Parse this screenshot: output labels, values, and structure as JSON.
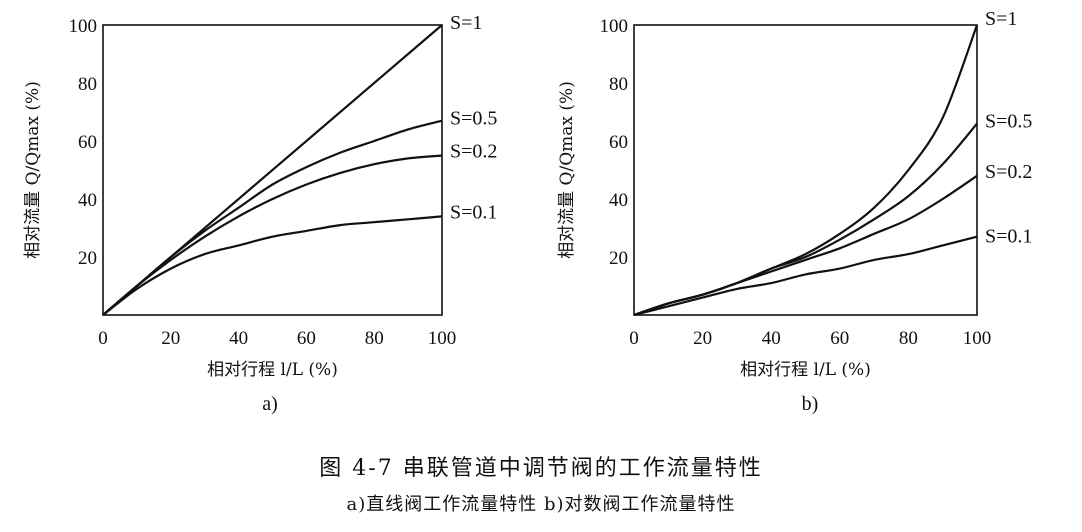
{
  "chart_data": [
    {
      "type": "line",
      "panel_label": "a)",
      "x": [
        0,
        10,
        20,
        30,
        40,
        50,
        60,
        70,
        80,
        90,
        100
      ],
      "xlabel": "相对行程 l/L (%)",
      "ylabel": "相对流量 Q/Qmax (%)",
      "xlim": [
        0,
        100
      ],
      "ylim": [
        0,
        100
      ],
      "xticks": [
        "0",
        "20",
        "40",
        "60",
        "80",
        "100"
      ],
      "yticks": [
        "20",
        "40",
        "60",
        "80",
        "100"
      ],
      "grid": false,
      "series": [
        {
          "name": "S=1",
          "values": [
            0,
            10,
            20,
            30,
            40,
            50,
            60,
            70,
            80,
            90,
            100
          ]
        },
        {
          "name": "S=0.5",
          "values": [
            0,
            10,
            20,
            29,
            37,
            45,
            51,
            56,
            60,
            64,
            67
          ]
        },
        {
          "name": "S=0.2",
          "values": [
            0,
            10,
            19,
            27,
            34,
            40,
            45,
            49,
            52,
            54,
            55
          ]
        },
        {
          "name": "S=0.1",
          "values": [
            0,
            9,
            16,
            21,
            24,
            27,
            29,
            31,
            32,
            33,
            34
          ]
        }
      ]
    },
    {
      "type": "line",
      "panel_label": "b)",
      "x": [
        0,
        10,
        20,
        30,
        40,
        50,
        60,
        70,
        80,
        90,
        100
      ],
      "xlabel": "相对行程 l/L (%)",
      "ylabel": "相对流量 Q/Qmax (%)",
      "xlim": [
        0,
        100
      ],
      "ylim": [
        0,
        100
      ],
      "xticks": [
        "0",
        "20",
        "40",
        "60",
        "80",
        "100"
      ],
      "yticks": [
        "20",
        "40",
        "60",
        "80",
        "100"
      ],
      "grid": false,
      "series": [
        {
          "name": "S=1",
          "values": [
            0,
            4,
            7,
            11,
            16,
            21,
            28,
            37,
            50,
            68,
            100
          ]
        },
        {
          "name": "S=0.5",
          "values": [
            0,
            4,
            7,
            11,
            16,
            20,
            26,
            33,
            41,
            52,
            66
          ]
        },
        {
          "name": "S=0.2",
          "values": [
            0,
            4,
            7,
            11,
            15,
            19,
            23,
            28,
            33,
            40,
            48
          ]
        },
        {
          "name": "S=0.1",
          "values": [
            0,
            3,
            6,
            9,
            11,
            14,
            16,
            19,
            21,
            24,
            27
          ]
        }
      ]
    }
  ],
  "caption": {
    "title": "图 4-7   串联管道中调节阀的工作流量特性",
    "subtitle": "a)直线阀工作流量特性   b)对数阀工作流量特性"
  }
}
